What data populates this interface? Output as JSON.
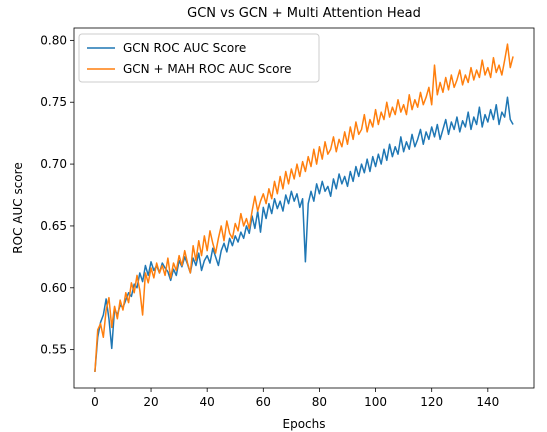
{
  "chart_data": {
    "type": "line",
    "title": "GCN vs GCN + Multi Attention Head",
    "x_label": "Epochs",
    "y_label": "ROC AUC score",
    "x": [
      0,
      1,
      2,
      3,
      4,
      5,
      6,
      7,
      8,
      9,
      10,
      11,
      12,
      13,
      14,
      15,
      16,
      17,
      18,
      19,
      20,
      21,
      22,
      23,
      24,
      25,
      26,
      27,
      28,
      29,
      30,
      31,
      32,
      33,
      34,
      35,
      36,
      37,
      38,
      39,
      40,
      41,
      42,
      43,
      44,
      45,
      46,
      47,
      48,
      49,
      50,
      51,
      52,
      53,
      54,
      55,
      56,
      57,
      58,
      59,
      60,
      61,
      62,
      63,
      64,
      65,
      66,
      67,
      68,
      69,
      70,
      71,
      72,
      73,
      74,
      75,
      76,
      77,
      78,
      79,
      80,
      81,
      82,
      83,
      84,
      85,
      86,
      87,
      88,
      89,
      90,
      91,
      92,
      93,
      94,
      95,
      96,
      97,
      98,
      99,
      100,
      101,
      102,
      103,
      104,
      105,
      106,
      107,
      108,
      109,
      110,
      111,
      112,
      113,
      114,
      115,
      116,
      117,
      118,
      119,
      120,
      121,
      122,
      123,
      124,
      125,
      126,
      127,
      128,
      129,
      130,
      131,
      132,
      133,
      134,
      135,
      136,
      137,
      138,
      139,
      140,
      141,
      142,
      143,
      144,
      145,
      146,
      147,
      148,
      149
    ],
    "series": [
      {
        "name": "GCN ROC AUC Score",
        "color": "#1f77b4",
        "values": [
          0.532,
          0.56,
          0.572,
          0.578,
          0.591,
          0.575,
          0.551,
          0.583,
          0.578,
          0.586,
          0.584,
          0.59,
          0.596,
          0.593,
          0.603,
          0.6,
          0.612,
          0.605,
          0.618,
          0.61,
          0.621,
          0.614,
          0.618,
          0.612,
          0.62,
          0.616,
          0.613,
          0.606,
          0.615,
          0.61,
          0.622,
          0.617,
          0.625,
          0.619,
          0.612,
          0.624,
          0.618,
          0.628,
          0.614,
          0.622,
          0.626,
          0.62,
          0.632,
          0.625,
          0.618,
          0.63,
          0.636,
          0.629,
          0.64,
          0.634,
          0.642,
          0.637,
          0.645,
          0.64,
          0.65,
          0.644,
          0.658,
          0.648,
          0.662,
          0.645,
          0.665,
          0.656,
          0.668,
          0.66,
          0.672,
          0.664,
          0.67,
          0.662,
          0.675,
          0.668,
          0.678,
          0.67,
          0.676,
          0.665,
          0.672,
          0.621,
          0.668,
          0.678,
          0.67,
          0.684,
          0.676,
          0.686,
          0.678,
          0.682,
          0.674,
          0.688,
          0.68,
          0.692,
          0.684,
          0.69,
          0.682,
          0.694,
          0.686,
          0.698,
          0.69,
          0.7,
          0.693,
          0.704,
          0.694,
          0.706,
          0.698,
          0.708,
          0.7,
          0.712,
          0.703,
          0.716,
          0.706,
          0.714,
          0.708,
          0.722,
          0.71,
          0.718,
          0.712,
          0.724,
          0.714,
          0.72,
          0.728,
          0.716,
          0.726,
          0.72,
          0.73,
          0.722,
          0.732,
          0.72,
          0.728,
          0.736,
          0.724,
          0.734,
          0.728,
          0.738,
          0.726,
          0.735,
          0.73,
          0.742,
          0.728,
          0.738,
          0.732,
          0.746,
          0.73,
          0.74,
          0.734,
          0.744,
          0.736,
          0.748,
          0.732,
          0.742,
          0.738,
          0.754,
          0.736,
          0.732
        ]
      },
      {
        "name": "GCN + MAH ROC AUC Score",
        "color": "#ff7f0e",
        "values": [
          0.532,
          0.566,
          0.571,
          0.56,
          0.582,
          0.592,
          0.568,
          0.585,
          0.575,
          0.59,
          0.582,
          0.596,
          0.588,
          0.604,
          0.596,
          0.61,
          0.598,
          0.578,
          0.612,
          0.604,
          0.616,
          0.608,
          0.62,
          0.612,
          0.618,
          0.61,
          0.624,
          0.608,
          0.62,
          0.614,
          0.626,
          0.618,
          0.63,
          0.62,
          0.612,
          0.634,
          0.622,
          0.638,
          0.626,
          0.642,
          0.63,
          0.646,
          0.636,
          0.628,
          0.64,
          0.65,
          0.638,
          0.654,
          0.644,
          0.64,
          0.652,
          0.646,
          0.66,
          0.65,
          0.656,
          0.648,
          0.662,
          0.674,
          0.662,
          0.67,
          0.676,
          0.668,
          0.68,
          0.672,
          0.686,
          0.676,
          0.69,
          0.68,
          0.694,
          0.684,
          0.696,
          0.688,
          0.7,
          0.69,
          0.702,
          0.694,
          0.706,
          0.698,
          0.712,
          0.7,
          0.714,
          0.704,
          0.718,
          0.708,
          0.712,
          0.722,
          0.71,
          0.72,
          0.714,
          0.726,
          0.716,
          0.73,
          0.72,
          0.734,
          0.724,
          0.728,
          0.74,
          0.726,
          0.736,
          0.73,
          0.744,
          0.732,
          0.742,
          0.736,
          0.75,
          0.738,
          0.746,
          0.74,
          0.752,
          0.742,
          0.748,
          0.74,
          0.756,
          0.744,
          0.752,
          0.746,
          0.758,
          0.748,
          0.754,
          0.762,
          0.748,
          0.78,
          0.756,
          0.766,
          0.758,
          0.77,
          0.76,
          0.772,
          0.762,
          0.768,
          0.776,
          0.764,
          0.772,
          0.766,
          0.778,
          0.768,
          0.776,
          0.77,
          0.784,
          0.772,
          0.778,
          0.77,
          0.786,
          0.774,
          0.78,
          0.772,
          0.784,
          0.797,
          0.778,
          0.787
        ]
      }
    ],
    "xlim": [
      -7.45,
      156.45
    ],
    "xticks": [
      0,
      20,
      40,
      60,
      80,
      100,
      120,
      140
    ],
    "ylim": [
      0.519,
      0.81
    ],
    "yticks": [
      0.55,
      {
        "value": 0.6,
        "label": "0.60"
      },
      0.65,
      {
        "value": 0.7,
        "label": "0.70"
      },
      0.75,
      {
        "value": 0.8,
        "label": "0.80"
      }
    ],
    "grid": false,
    "legend": "upper left"
  }
}
